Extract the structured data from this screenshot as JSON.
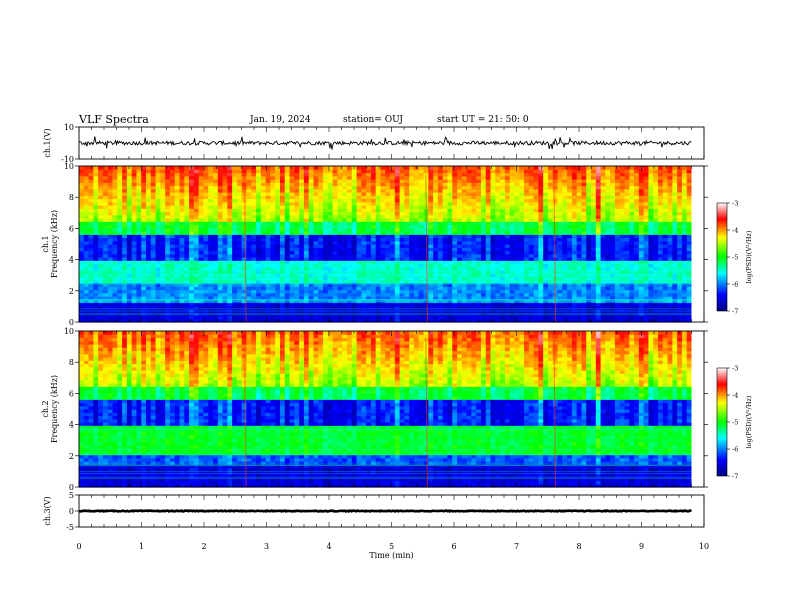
{
  "header": {
    "title": "VLF Spectra",
    "date": "Jan. 19, 2024",
    "station": "station= OUJ",
    "start": "start  UT =  21: 50: 0"
  },
  "chart_data": {
    "type": "heatmap",
    "x_axis": {
      "label": "Time  (min)",
      "range": [
        0,
        10
      ],
      "ticks": [
        "0",
        "1",
        "2",
        "3",
        "4",
        "5",
        "6",
        "7",
        "8",
        "9",
        "10"
      ],
      "data_end": 9.8
    },
    "panels": [
      {
        "kind": "waveform",
        "ylabel": "ch.1(V)",
        "yrange": [
          -10,
          10
        ],
        "yticks": [
          "10",
          "-10"
        ],
        "baseline": 0
      },
      {
        "kind": "spectrogram",
        "ylabel_top": "ch.1",
        "ylabel": "Frequency  (kHz)",
        "yrange": [
          0,
          10
        ],
        "yticks": [
          "0",
          "2",
          "4",
          "6",
          "8",
          "10"
        ],
        "colorbar": {
          "label": "log(PSD)(V²/Hz)",
          "range": [
            -7,
            -3
          ],
          "ticks": [
            "-3",
            "-4",
            "-5",
            "-6",
            "-7"
          ],
          "colormap": [
            "#000080",
            "#0000ff",
            "#00ffff",
            "#00ff00",
            "#ffff00",
            "#ff0000",
            "#ffffff"
          ]
        }
      },
      {
        "kind": "spectrogram",
        "ylabel_top": "ch.2",
        "ylabel": "Frequency  (kHz)",
        "yrange": [
          0,
          10
        ],
        "yticks": [
          "0",
          "2",
          "4",
          "6",
          "8",
          "10"
        ],
        "colorbar": {
          "label": "log(PSD)(V²/Hz)",
          "range": [
            -7,
            -3
          ],
          "ticks": [
            "-3",
            "-4",
            "-5",
            "-6",
            "-7"
          ],
          "colormap": [
            "#000080",
            "#0000ff",
            "#00ffff",
            "#00ff00",
            "#ffff00",
            "#ff0000",
            "#ffffff"
          ]
        }
      },
      {
        "kind": "waveform",
        "ylabel": "ch.3(V)",
        "yrange": [
          -5,
          5
        ],
        "yticks": [
          "5",
          "0",
          "-5"
        ],
        "baseline": 0
      }
    ]
  }
}
